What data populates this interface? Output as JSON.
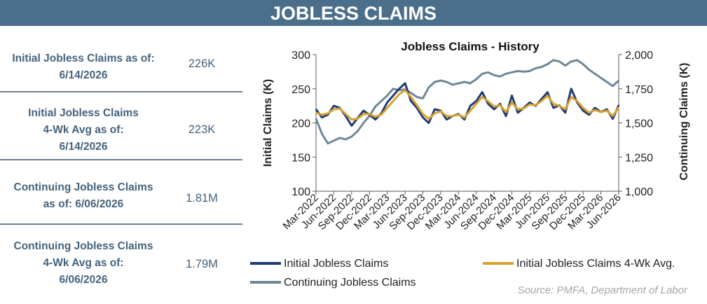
{
  "header": {
    "title": "JOBLESS CLAIMS"
  },
  "stats": [
    {
      "label_lines": [
        "Initial Jobless Claims as of:",
        "6/14/2026"
      ],
      "value": "226K"
    },
    {
      "label_lines": [
        "Initial Jobless Claims",
        "4-Wk Avg as of:",
        "6/14/2026"
      ],
      "value": "223K"
    },
    {
      "label_lines": [
        "Continuing Jobless Claims",
        "as of: 6/06/2026"
      ],
      "value": "1.81M"
    },
    {
      "label_lines": [
        "Continuing Jobless Claims",
        "4-Wk Avg as of:",
        "6/06/2026"
      ],
      "value": "1.79M"
    }
  ],
  "source": "Source: PMFA, Department of Labor",
  "chart_data": {
    "type": "line",
    "title": "Jobless Claims - History",
    "ylabel": "Initial Claims (K)",
    "y2label": "Continuing  Claims (K)",
    "ylim": [
      100,
      300
    ],
    "y2lim": [
      1000,
      2000
    ],
    "yticks": [
      "100",
      "150",
      "200",
      "250",
      "300"
    ],
    "y2ticks": [
      "1,000",
      "1,250",
      "1,500",
      "1,750",
      "2,000"
    ],
    "xlim": [
      "2022-03",
      "2026-06"
    ],
    "xticks": [
      "Mar-2022",
      "Jun-2022",
      "Sep-2022",
      "Dec-2022",
      "Mar-2023",
      "Jun-2023",
      "Sep-2023",
      "Dec-2023",
      "Mar-2024",
      "Jun-2024",
      "Sep-2024",
      "Dec-2024",
      "Mar-2025",
      "Jun-2025",
      "Sep-2025",
      "Dec-2025",
      "Mar-2026",
      "Jun-2026"
    ],
    "legend_position": "bottom",
    "colors": {
      "initial": "#1f3c74",
      "avg4wk": "#d9a131",
      "continuing": "#6f8797",
      "axis": "#595959",
      "text": "#222222"
    },
    "series": [
      {
        "name": "Initial Jobless Claims",
        "axis": "left",
        "x": [
          "2022-03",
          "2022-04",
          "2022-05",
          "2022-06",
          "2022-07",
          "2022-08",
          "2022-09",
          "2022-10",
          "2022-11",
          "2022-12",
          "2023-01",
          "2023-02",
          "2023-03",
          "2023-04",
          "2023-05",
          "2023-06",
          "2023-07",
          "2023-08",
          "2023-09",
          "2023-10",
          "2023-11",
          "2023-12",
          "2024-01",
          "2024-02",
          "2024-03",
          "2024-04",
          "2024-05",
          "2024-06",
          "2024-07",
          "2024-08",
          "2024-09",
          "2024-10",
          "2024-11",
          "2024-12",
          "2025-01",
          "2025-02",
          "2025-03",
          "2025-04",
          "2025-05",
          "2025-06",
          "2025-07",
          "2025-08",
          "2025-09",
          "2025-10",
          "2025-11",
          "2025-12",
          "2026-01",
          "2026-02",
          "2026-03",
          "2026-04",
          "2026-05",
          "2026-06"
        ],
        "values": [
          220,
          208,
          212,
          225,
          222,
          210,
          196,
          207,
          218,
          212,
          205,
          214,
          230,
          240,
          250,
          258,
          232,
          222,
          208,
          200,
          220,
          218,
          205,
          210,
          213,
          205,
          225,
          232,
          245,
          228,
          220,
          228,
          210,
          240,
          215,
          222,
          230,
          225,
          235,
          245,
          222,
          226,
          215,
          250,
          230,
          218,
          212,
          222,
          216,
          220,
          206,
          226
        ]
      },
      {
        "name": "Initial Jobless Claims 4-Wk Avg.",
        "axis": "left",
        "x": [
          "2022-03",
          "2022-04",
          "2022-05",
          "2022-06",
          "2022-07",
          "2022-08",
          "2022-09",
          "2022-10",
          "2022-11",
          "2022-12",
          "2023-01",
          "2023-02",
          "2023-03",
          "2023-04",
          "2023-05",
          "2023-06",
          "2023-07",
          "2023-08",
          "2023-09",
          "2023-10",
          "2023-11",
          "2023-12",
          "2024-01",
          "2024-02",
          "2024-03",
          "2024-04",
          "2024-05",
          "2024-06",
          "2024-07",
          "2024-08",
          "2024-09",
          "2024-10",
          "2024-11",
          "2024-12",
          "2025-01",
          "2025-02",
          "2025-03",
          "2025-04",
          "2025-05",
          "2025-06",
          "2025-07",
          "2025-08",
          "2025-09",
          "2025-10",
          "2025-11",
          "2025-12",
          "2026-01",
          "2026-02",
          "2026-03",
          "2026-04",
          "2026-05",
          "2026-06"
        ],
        "values": [
          215,
          212,
          214,
          220,
          221,
          213,
          205,
          206,
          213,
          213,
          209,
          212,
          222,
          232,
          242,
          248,
          238,
          226,
          213,
          206,
          214,
          217,
          210,
          210,
          212,
          208,
          218,
          228,
          238,
          232,
          224,
          226,
          216,
          230,
          220,
          221,
          227,
          226,
          232,
          240,
          228,
          225,
          220,
          238,
          232,
          222,
          215,
          219,
          216,
          218,
          210,
          223
        ]
      },
      {
        "name": "Continuing Jobless Claims",
        "axis": "right",
        "x": [
          "2022-03",
          "2022-04",
          "2022-05",
          "2022-06",
          "2022-07",
          "2022-08",
          "2022-09",
          "2022-10",
          "2022-11",
          "2022-12",
          "2023-01",
          "2023-02",
          "2023-03",
          "2023-04",
          "2023-05",
          "2023-06",
          "2023-07",
          "2023-08",
          "2023-09",
          "2023-10",
          "2023-11",
          "2023-12",
          "2024-01",
          "2024-02",
          "2024-03",
          "2024-04",
          "2024-05",
          "2024-06",
          "2024-07",
          "2024-08",
          "2024-09",
          "2024-10",
          "2024-11",
          "2024-12",
          "2025-01",
          "2025-02",
          "2025-03",
          "2025-04",
          "2025-05",
          "2025-06",
          "2025-07",
          "2025-08",
          "2025-09",
          "2025-10",
          "2025-11",
          "2025-12",
          "2026-01",
          "2026-02",
          "2026-03",
          "2026-04",
          "2026-05",
          "2026-06"
        ],
        "values": [
          1530,
          1420,
          1350,
          1370,
          1390,
          1380,
          1400,
          1440,
          1500,
          1550,
          1620,
          1660,
          1700,
          1750,
          1740,
          1745,
          1720,
          1690,
          1680,
          1760,
          1800,
          1810,
          1800,
          1780,
          1790,
          1800,
          1790,
          1820,
          1860,
          1870,
          1850,
          1840,
          1860,
          1870,
          1880,
          1875,
          1880,
          1900,
          1910,
          1930,
          1960,
          1950,
          1920,
          1950,
          1960,
          1930,
          1890,
          1860,
          1830,
          1800,
          1770,
          1810
        ]
      }
    ]
  }
}
